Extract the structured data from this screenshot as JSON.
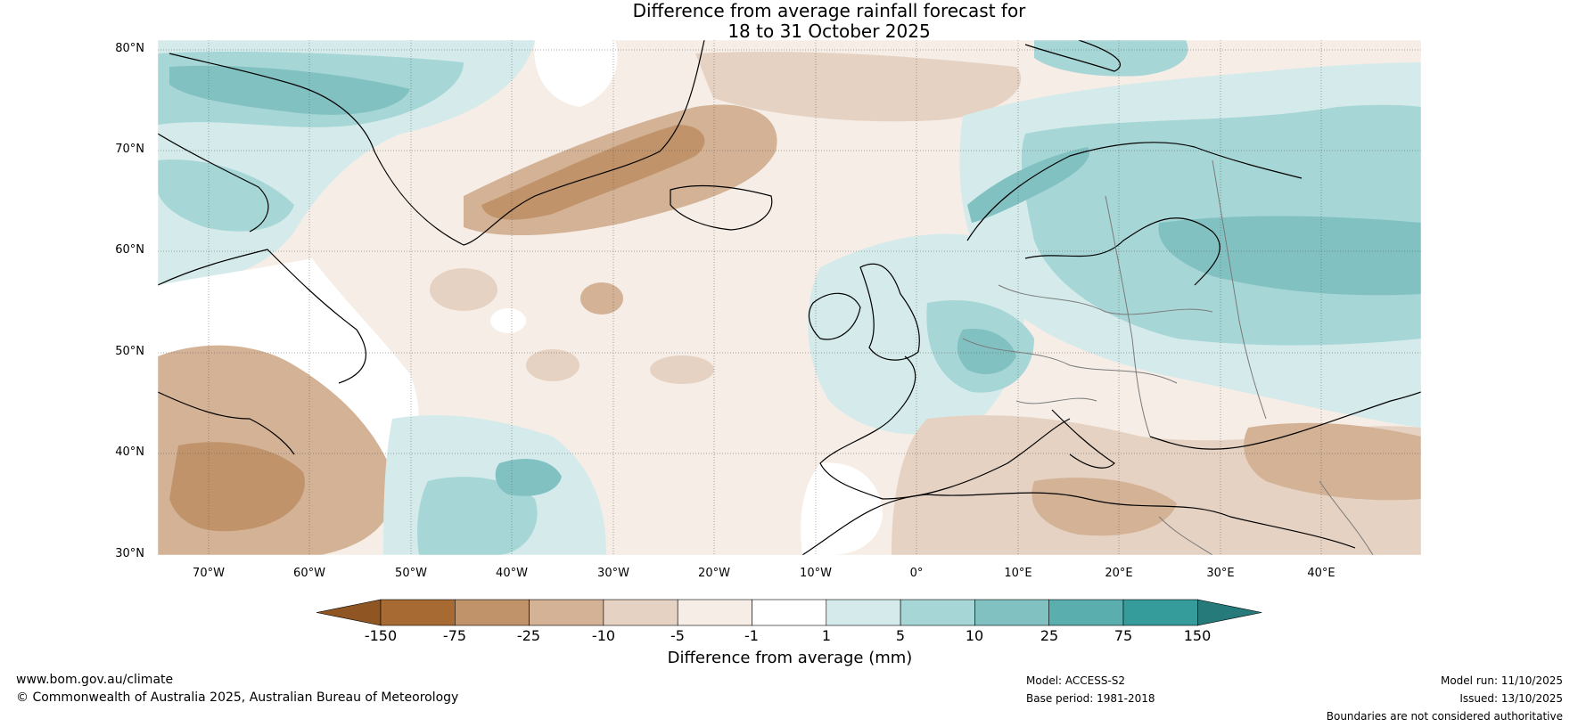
{
  "header": {
    "title_line1": "Difference from average rainfall forecast for",
    "title_line2": "18 to 31 October 2025"
  },
  "map": {
    "lat_labels": [
      "80°N",
      "70°N",
      "60°N",
      "50°N",
      "40°N",
      "30°N"
    ],
    "lon_labels": [
      "70°W",
      "60°W",
      "50°W",
      "40°W",
      "30°W",
      "20°W",
      "10°W",
      "0°",
      "10°E",
      "20°E",
      "30°E",
      "40°E"
    ],
    "colors": {
      "ocean_base": "#f5ede6",
      "coast": "#000000",
      "borders": "#7a7a7a",
      "grid": "#555555"
    }
  },
  "colorbar": {
    "label": "Difference from average (mm)",
    "ticks": [
      "-150",
      "-75",
      "-25",
      "-10",
      "-5",
      "-1",
      "1",
      "5",
      "10",
      "25",
      "75",
      "150"
    ],
    "colors": [
      "#a86a33",
      "#c0936a",
      "#d3b296",
      "#e6d2c2",
      "#f5ede6",
      "#ffffff",
      "#d5ebeb",
      "#a7d6d6",
      "#82c1c1",
      "#5aaeae",
      "#369b9b",
      "#267a7a"
    ],
    "end_colors": {
      "low": "#8f5523",
      "high": "#267a7a"
    }
  },
  "footer": {
    "url": "www.bom.gov.au/climate",
    "copyright": "© Commonwealth of Australia 2025, Australian Bureau of Meteorology",
    "model": "Model: ACCESS-S2",
    "base_period": "Base period: 1981-2018",
    "model_run": "Model run: 11/10/2025",
    "issued": "Issued: 13/10/2025",
    "disclaimer": "Boundaries are not considered authoritative"
  }
}
